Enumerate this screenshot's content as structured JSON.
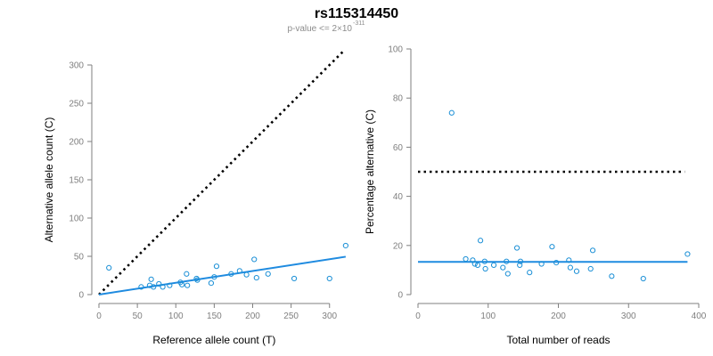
{
  "figure": {
    "title": "rs115314450",
    "subtitle": "p-value <= 2×10",
    "subtitle_exponent": "-311"
  },
  "colors": {
    "points": "#1a8fd6",
    "fit_line": "#1f8be0",
    "reference_line": "#000000",
    "axis": "#7f7f7f"
  },
  "chart_data": [
    {
      "type": "scatter",
      "xlabel": "Reference allele count (T)",
      "ylabel": "Alternative allele count (C)",
      "xlim": [
        0,
        320
      ],
      "ylim": [
        0,
        300
      ],
      "x_ticks": [
        0,
        50,
        100,
        150,
        200,
        250,
        300
      ],
      "y_ticks": [
        0,
        50,
        100,
        150,
        200,
        250,
        300
      ],
      "grid": false,
      "points": [
        {
          "x": 13,
          "y": 35
        },
        {
          "x": 55,
          "y": 10
        },
        {
          "x": 66,
          "y": 12
        },
        {
          "x": 68,
          "y": 20
        },
        {
          "x": 71,
          "y": 10
        },
        {
          "x": 78,
          "y": 14
        },
        {
          "x": 83,
          "y": 10
        },
        {
          "x": 92,
          "y": 12
        },
        {
          "x": 106,
          "y": 16
        },
        {
          "x": 108,
          "y": 13
        },
        {
          "x": 114,
          "y": 27
        },
        {
          "x": 115,
          "y": 12
        },
        {
          "x": 127,
          "y": 21
        },
        {
          "x": 128,
          "y": 19
        },
        {
          "x": 146,
          "y": 15
        },
        {
          "x": 150,
          "y": 23
        },
        {
          "x": 153,
          "y": 37
        },
        {
          "x": 172,
          "y": 27
        },
        {
          "x": 183,
          "y": 31
        },
        {
          "x": 192,
          "y": 26
        },
        {
          "x": 202,
          "y": 46
        },
        {
          "x": 205,
          "y": 22
        },
        {
          "x": 220,
          "y": 27
        },
        {
          "x": 254,
          "y": 21
        },
        {
          "x": 300,
          "y": 21
        },
        {
          "x": 321,
          "y": 64
        }
      ],
      "fit_line": {
        "x": [
          0,
          321
        ],
        "y": [
          0,
          49.5
        ]
      },
      "reference_line": {
        "x": [
          0,
          319
        ],
        "y": [
          0,
          319
        ]
      }
    },
    {
      "type": "scatter",
      "xlabel": "Total number of reads",
      "ylabel": "Percentage alternative (C)",
      "xlim": [
        0,
        400
      ],
      "ylim": [
        0,
        100
      ],
      "x_ticks": [
        0,
        100,
        200,
        300,
        400
      ],
      "y_ticks": [
        0,
        20,
        40,
        60,
        80,
        100
      ],
      "grid": false,
      "points": [
        {
          "x": 48,
          "y": 74
        },
        {
          "x": 68,
          "y": 14.5
        },
        {
          "x": 78,
          "y": 14
        },
        {
          "x": 81,
          "y": 12.5
        },
        {
          "x": 85,
          "y": 12
        },
        {
          "x": 89,
          "y": 22
        },
        {
          "x": 95,
          "y": 13.5
        },
        {
          "x": 96,
          "y": 10.5
        },
        {
          "x": 108,
          "y": 12
        },
        {
          "x": 121,
          "y": 11
        },
        {
          "x": 126,
          "y": 13.5
        },
        {
          "x": 128,
          "y": 8.5
        },
        {
          "x": 141,
          "y": 19
        },
        {
          "x": 145,
          "y": 12
        },
        {
          "x": 146,
          "y": 13.5
        },
        {
          "x": 159,
          "y": 9
        },
        {
          "x": 176,
          "y": 12.5
        },
        {
          "x": 191,
          "y": 19.5
        },
        {
          "x": 197,
          "y": 13
        },
        {
          "x": 215,
          "y": 14
        },
        {
          "x": 217,
          "y": 11
        },
        {
          "x": 226,
          "y": 9.5
        },
        {
          "x": 246,
          "y": 10.5
        },
        {
          "x": 249,
          "y": 18
        },
        {
          "x": 276,
          "y": 7.5
        },
        {
          "x": 321,
          "y": 6.5
        },
        {
          "x": 384,
          "y": 16.5
        }
      ],
      "fit_line": {
        "x": [
          0,
          384
        ],
        "y": [
          13.3,
          13.3
        ]
      },
      "reference_line": {
        "x": [
          0,
          380
        ],
        "y": [
          50,
          50
        ]
      }
    }
  ]
}
